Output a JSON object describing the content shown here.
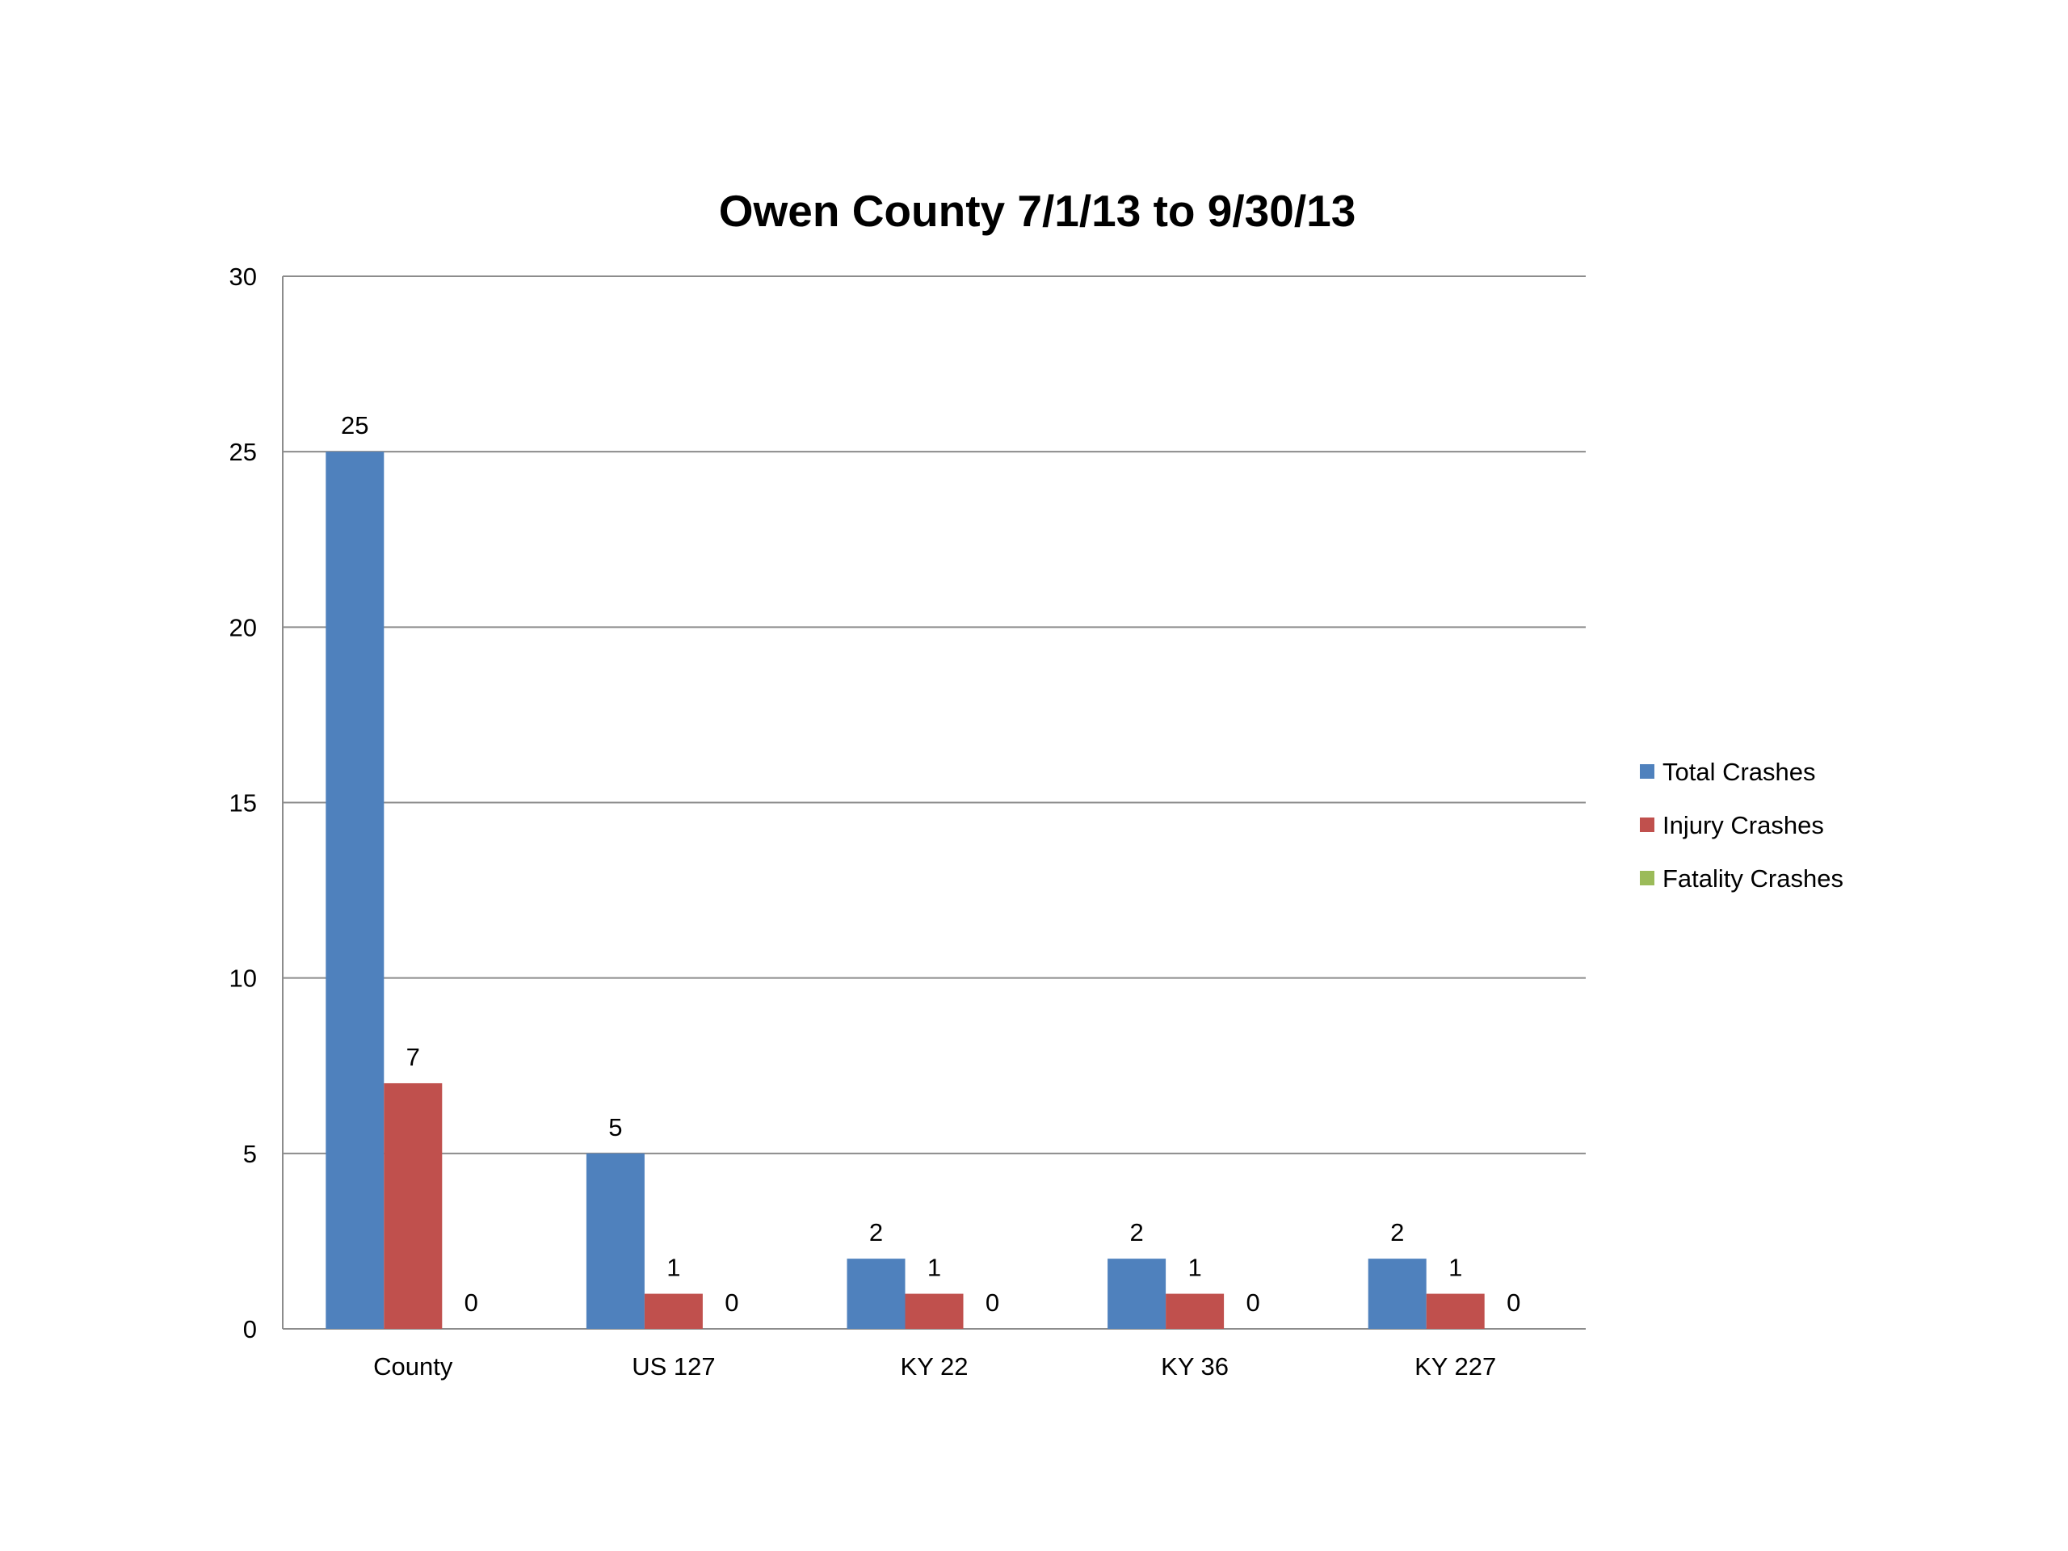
{
  "chart_data": {
    "type": "bar",
    "title": "Owen County 7/1/13 to 9/30/13",
    "xlabel": "",
    "ylabel": "",
    "ylim": [
      0,
      30
    ],
    "yticks": [
      "0",
      "5",
      "10",
      "15",
      "20",
      "25",
      "30"
    ],
    "grid": true,
    "legend_position": "right",
    "categories": [
      "County",
      "US 127",
      "KY 22",
      "KY 36",
      "KY 227"
    ],
    "series": [
      {
        "name": "Total Crashes",
        "color": "#4f81bd",
        "values": [
          25,
          5,
          2,
          2,
          2
        ]
      },
      {
        "name": "Injury Crashes",
        "color": "#c0504d",
        "values": [
          7,
          1,
          1,
          1,
          1
        ]
      },
      {
        "name": "Fatality Crashes",
        "color": "#9bbb59",
        "values": [
          0,
          0,
          0,
          0,
          0
        ]
      }
    ],
    "data_labels": [
      [
        "25",
        "5",
        "2",
        "2",
        "2"
      ],
      [
        "7",
        "1",
        "1",
        "1",
        "1"
      ],
      [
        "0",
        "0",
        "0",
        "0",
        "0"
      ]
    ]
  }
}
